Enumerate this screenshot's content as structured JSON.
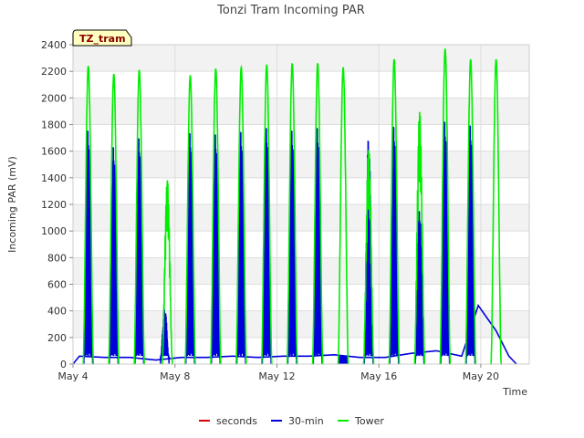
{
  "chart_data": {
    "type": "line",
    "title": "Tonzi Tram Incoming PAR",
    "xlabel": "Time",
    "ylabel": "Incoming PAR (mV)",
    "badge": "TZ_tram",
    "xlim": [
      4,
      21.9
    ],
    "ylim": [
      0,
      2400
    ],
    "x_ticks": [
      4,
      8,
      12,
      16,
      20
    ],
    "x_tick_labels": [
      "May 4",
      "May 8",
      "May 12",
      "May 16",
      "May 20"
    ],
    "y_ticks": [
      0,
      200,
      400,
      600,
      800,
      1000,
      1200,
      1400,
      1600,
      1800,
      2000,
      2200,
      2400
    ],
    "y_tick_labels": [
      "0",
      "200",
      "400",
      "600",
      "800",
      "1000",
      "1200",
      "1400",
      "1600",
      "1800",
      "2000",
      "2200",
      "2400"
    ],
    "grid": true,
    "legend_position": "bottom",
    "series": [
      {
        "name": "seconds",
        "color": "#dd0000",
        "points": []
      },
      {
        "name": "30-min",
        "color": "#0000dd",
        "daily_peaks": [
          [
            4.6,
            1830
          ],
          [
            5.6,
            1700
          ],
          [
            6.6,
            1770
          ],
          [
            7.6,
            430
          ],
          [
            8.6,
            1810
          ],
          [
            9.6,
            1800
          ],
          [
            10.6,
            1820
          ],
          [
            11.6,
            1850
          ],
          [
            12.6,
            1830
          ],
          [
            13.6,
            1850
          ],
          [
            14.6,
            0
          ],
          [
            15.6,
            1750
          ],
          [
            16.6,
            1860
          ],
          [
            17.6,
            1200
          ],
          [
            18.6,
            1900
          ],
          [
            19.6,
            1870
          ]
        ],
        "night_baseline": [
          [
            4.0,
            0
          ],
          [
            4.25,
            60
          ],
          [
            5.25,
            50
          ],
          [
            6.25,
            50
          ],
          [
            7.25,
            30
          ],
          [
            8.25,
            50
          ],
          [
            9.25,
            50
          ],
          [
            10.25,
            60
          ],
          [
            11.25,
            50
          ],
          [
            12.25,
            60
          ],
          [
            13.25,
            60
          ],
          [
            14.25,
            70
          ],
          [
            15.25,
            50
          ],
          [
            16.25,
            50
          ],
          [
            17.25,
            80
          ],
          [
            18.25,
            100
          ],
          [
            19.25,
            60
          ],
          [
            19.9,
            440
          ],
          [
            20.6,
            250
          ],
          [
            21.1,
            60
          ],
          [
            21.4,
            0
          ]
        ]
      },
      {
        "name": "Tower",
        "color": "#00ee00",
        "daily_peaks": [
          [
            4.6,
            2240
          ],
          [
            5.6,
            2180
          ],
          [
            6.6,
            2210
          ],
          [
            7.7,
            1400
          ],
          [
            8.6,
            2170
          ],
          [
            9.6,
            2220
          ],
          [
            10.6,
            2230
          ],
          [
            11.6,
            2250
          ],
          [
            12.6,
            2260
          ],
          [
            13.6,
            2260
          ],
          [
            14.6,
            2230
          ],
          [
            15.6,
            1630
          ],
          [
            16.6,
            2290
          ],
          [
            17.6,
            1920
          ],
          [
            18.6,
            2370
          ],
          [
            19.6,
            2290
          ],
          [
            20.6,
            2290
          ]
        ]
      }
    ]
  }
}
